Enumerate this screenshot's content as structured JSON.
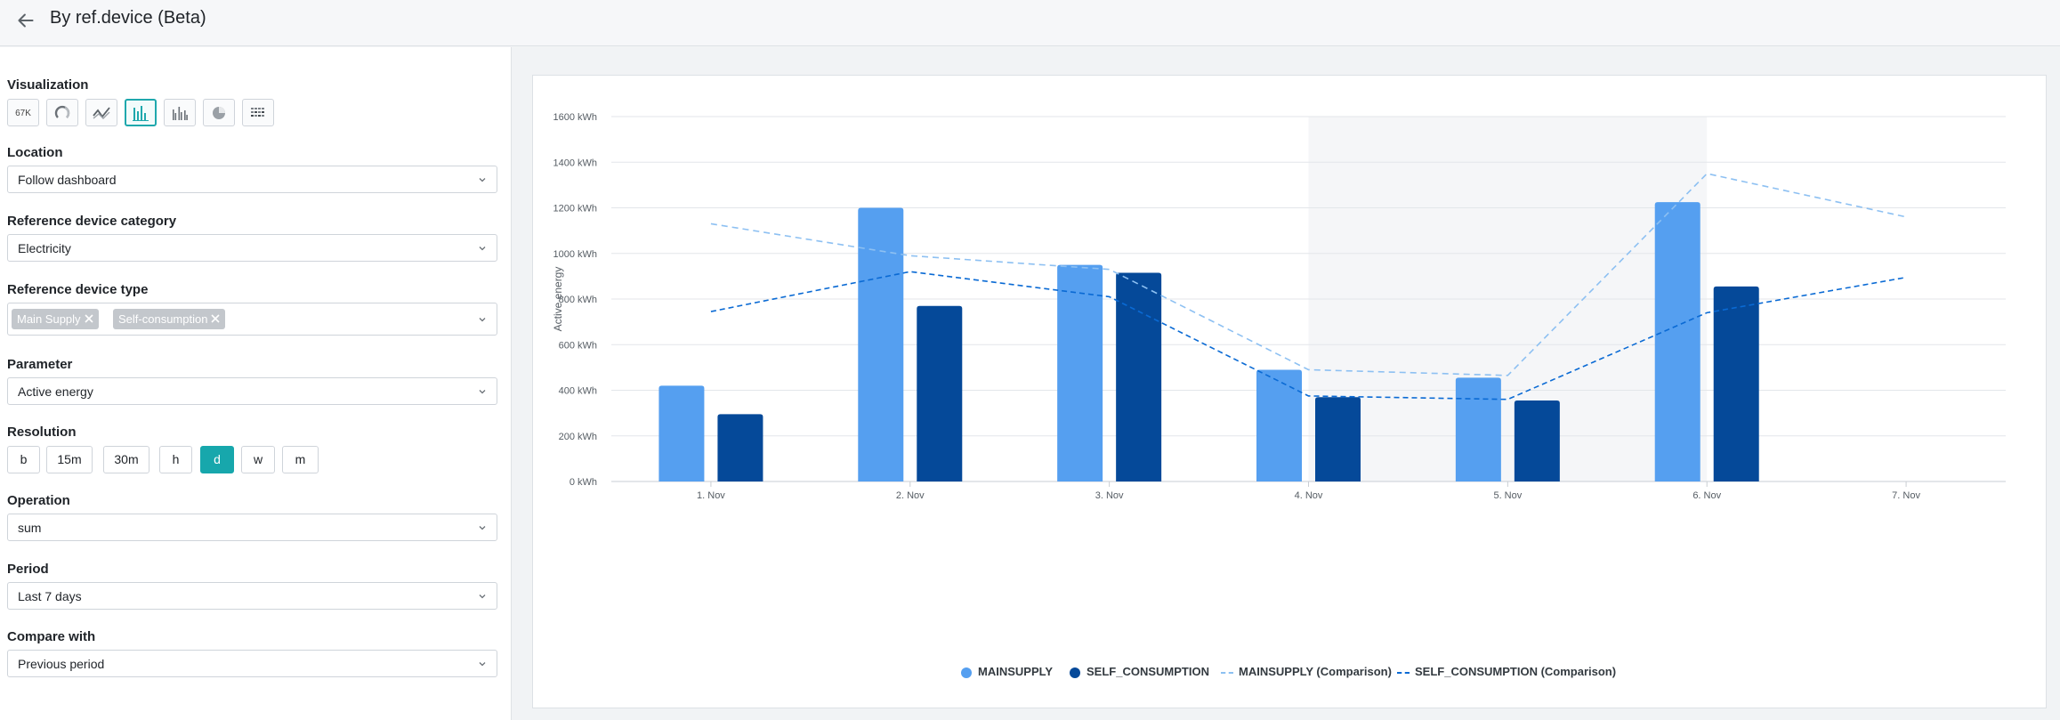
{
  "header": {
    "title": "By ref.device (Beta)",
    "back_icon": "arrow-left-icon"
  },
  "sidebar": {
    "visualization_label": "Visualization",
    "visualization_options": [
      {
        "icon": "number-tile-icon",
        "text": "67K",
        "active": false
      },
      {
        "icon": "gauge-icon",
        "active": false
      },
      {
        "icon": "line-chart-icon",
        "active": false
      },
      {
        "icon": "bar-chart-icon",
        "active": true
      },
      {
        "icon": "grouped-bar-chart-icon",
        "active": false
      },
      {
        "icon": "pie-chart-icon",
        "active": false
      },
      {
        "icon": "heatmap-icon",
        "active": false
      }
    ],
    "location_label": "Location",
    "location_value": "Follow dashboard",
    "category_label": "Reference device category",
    "category_value": "Electricity",
    "type_label": "Reference device type",
    "type_tags": [
      "Main Supply",
      "Self-consumption"
    ],
    "parameter_label": "Parameter",
    "parameter_value": "Active energy",
    "resolution_label": "Resolution",
    "resolution_options": [
      "b",
      "15m",
      "30m",
      "h",
      "d",
      "w",
      "m"
    ],
    "resolution_selected": "d",
    "operation_label": "Operation",
    "operation_value": "sum",
    "period_label": "Period",
    "period_value": "Last 7 days",
    "compare_label": "Compare with",
    "compare_value": "Previous period"
  },
  "colors": {
    "accent": "#17a7ac",
    "mainsupply": "#559ff0",
    "self_consumption": "#054999",
    "mainsupply_comparison": "#8dc0f2",
    "self_consumption_comparison": "#0a6ad4"
  },
  "chart_data": {
    "type": "bar",
    "ylabel": "Active energy",
    "unit": "kWh",
    "ylim": [
      0,
      1600
    ],
    "yticks": [
      "0 kWh",
      "200 kWh",
      "400 kWh",
      "600 kWh",
      "800 kWh",
      "1000 kWh",
      "1200 kWh",
      "1400 kWh",
      "1600 kWh"
    ],
    "categories": [
      "1. Nov",
      "2. Nov",
      "3. Nov",
      "4. Nov",
      "5. Nov",
      "6. Nov",
      "7. Nov"
    ],
    "highlighted_categories": [
      "4. Nov",
      "5. Nov"
    ],
    "series": [
      {
        "name": "MAINSUPPLY",
        "kind": "bar",
        "values": [
          420,
          1200,
          950,
          490,
          455,
          1225,
          null
        ]
      },
      {
        "name": "SELF_CONSUMPTION",
        "kind": "bar",
        "values": [
          295,
          770,
          915,
          370,
          355,
          855,
          null
        ]
      },
      {
        "name": "MAINSUPPLY (Comparison)",
        "kind": "dashed-line",
        "values": [
          1130,
          990,
          930,
          490,
          465,
          1350,
          1160
        ]
      },
      {
        "name": "SELF_CONSUMPTION (Comparison)",
        "kind": "dashed-line",
        "values": [
          745,
          920,
          810,
          375,
          360,
          740,
          895
        ]
      }
    ],
    "grid": true,
    "legend_position": "bottom-center"
  }
}
